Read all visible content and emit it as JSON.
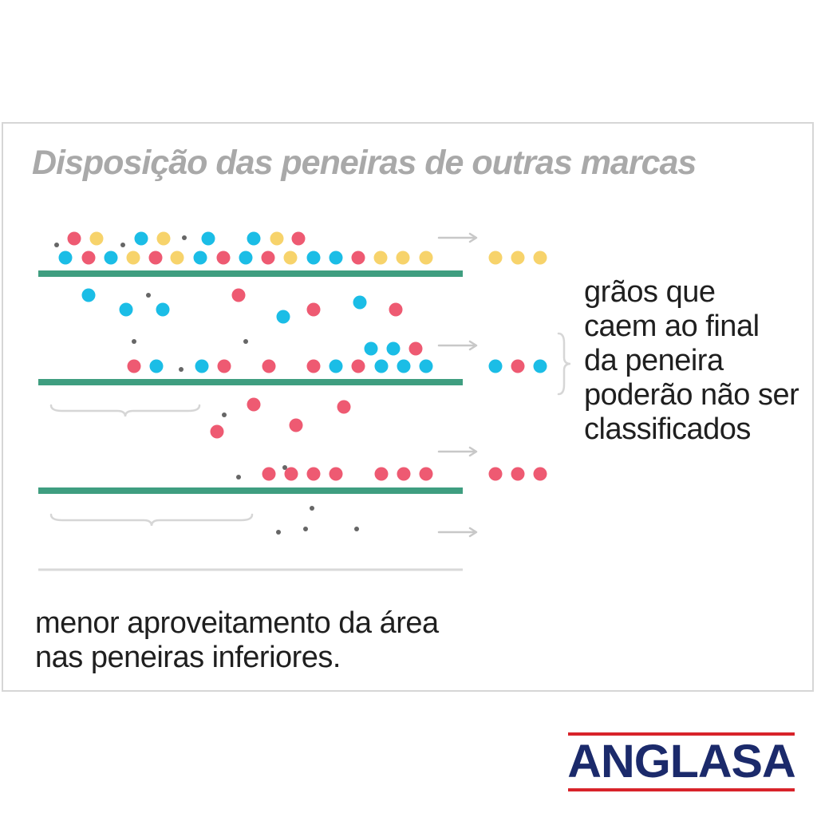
{
  "title": "Disposição das peneiras de outras marcas",
  "side_note": {
    "lines": [
      "grãos que",
      "caem ao final",
      "da peneira",
      "poderão não ser",
      "classificados"
    ]
  },
  "bottom_note": {
    "lines": [
      "menor aproveitamento da área",
      "nas peneiras inferiores."
    ]
  },
  "logo": {
    "text": "ANGLASA"
  },
  "colors": {
    "grain_yellow": "#f7d36b",
    "grain_blue": "#1bbde6",
    "grain_red": "#ee5a72",
    "impurity": "#666666",
    "sieve": "#3f9e80",
    "bottom_line": "#d9d9d9",
    "arrow": "#c8c8c8",
    "brace": "#d6d6d6",
    "logo_blue": "#1b2a6b",
    "logo_red": "#d8232a"
  },
  "legend_icons": [
    "sieve",
    "grain-yellow",
    "grain-blue",
    "grain-red",
    "impurity-dot",
    "arrow-right-icon",
    "brace-icon"
  ]
}
